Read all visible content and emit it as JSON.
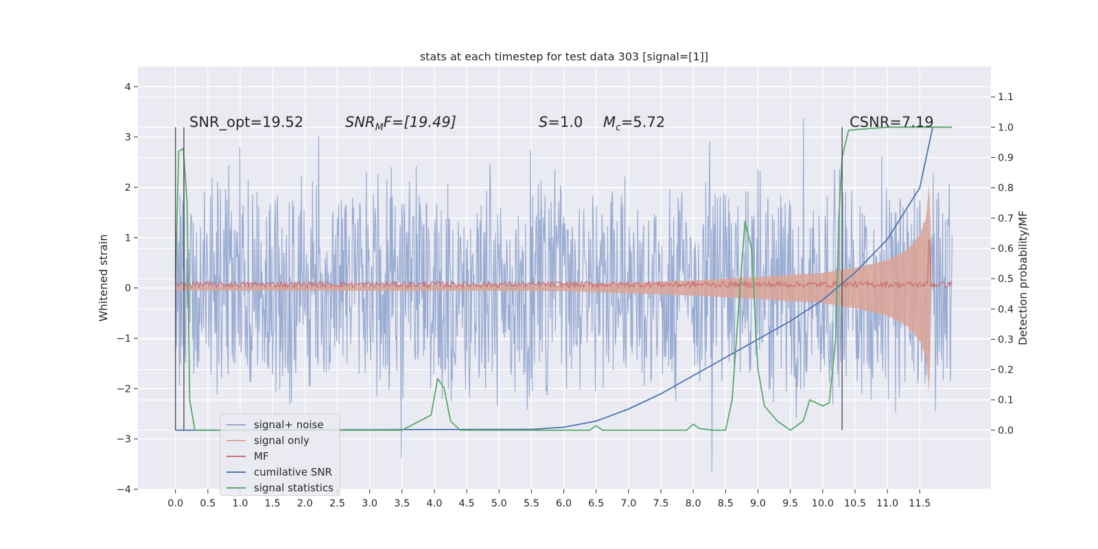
{
  "chart_data": {
    "type": "line",
    "title": "stats at each timestep for test data 303 [signal=[1]]",
    "xlabel": "",
    "ylabel": "Whitened strain",
    "y2label": "Detection probability/MF",
    "xlim": [
      -0.58,
      12.6
    ],
    "ylim": [
      -4.0,
      4.4
    ],
    "y2lim": [
      -0.195,
      1.2
    ],
    "x_ticks": [
      "0.0",
      "0.5",
      "1.0",
      "1.5",
      "2.0",
      "2.5",
      "3.0",
      "3.5",
      "4.0",
      "4.5",
      "5.0",
      "5.5",
      "6.0",
      "6.5",
      "7.0",
      "7.5",
      "8.0",
      "8.5",
      "9.0",
      "9.5",
      "10.0",
      "10.5",
      "11.0",
      "11.5"
    ],
    "y_ticks": [
      "4",
      "3",
      "2",
      "1",
      "0",
      "−1",
      "−2",
      "−3",
      "−4"
    ],
    "y2_ticks": [
      "1.1",
      "1.0",
      "0.9",
      "0.8",
      "0.7",
      "0.6",
      "0.5",
      "0.4",
      "0.3",
      "0.2",
      "0.1",
      "0.0"
    ],
    "grid": true,
    "legend_position": "lower-left",
    "annotations": {
      "snr_opt": "SNR_opt=19.52",
      "snr_mf_a": "SNR",
      "snr_mf_sub": "M",
      "snr_mf_b": "F=[19.49]",
      "s_a": "S",
      "s_b": "=1.0",
      "mc_a": "M",
      "mc_sub": "c",
      "mc_b": "=5.72",
      "csnr": "CSNR=7.19"
    },
    "series": [
      {
        "name": "signal+ noise",
        "color": "#94a8d0",
        "envelope_amplitude": 2.5,
        "x_range": [
          0.0,
          12.0
        ]
      },
      {
        "name": "signal only",
        "color": "#dba596",
        "x": [
          0.0,
          6.0,
          8.0,
          9.0,
          10.0,
          10.5,
          11.0,
          11.3,
          11.5,
          11.6,
          11.65,
          11.68
        ],
        "amplitude": [
          0.05,
          0.06,
          0.15,
          0.22,
          0.3,
          0.4,
          0.55,
          0.75,
          1.05,
          1.4,
          2.2,
          0.2
        ]
      },
      {
        "name": "MF",
        "color": "#cb6e71",
        "center": 0.07,
        "ripple": 0.06,
        "spike_x": 11.65,
        "spike_y": 0.95
      },
      {
        "name": "cumilative SNR",
        "color": "#4c72b0",
        "x": [
          0.0,
          5.5,
          6.0,
          6.5,
          7.0,
          7.5,
          8.0,
          8.5,
          9.0,
          9.5,
          10.0,
          10.5,
          11.0,
          11.5,
          11.7
        ],
        "y2": [
          0.0,
          0.003,
          0.01,
          0.03,
          0.07,
          0.12,
          0.18,
          0.24,
          0.3,
          0.36,
          0.43,
          0.52,
          0.63,
          0.8,
          1.0
        ]
      },
      {
        "name": "signal statistics",
        "color": "#55a868",
        "x": [
          0.0,
          0.05,
          0.12,
          0.18,
          0.22,
          0.3,
          3.5,
          3.95,
          4.05,
          4.15,
          4.25,
          4.4,
          6.4,
          6.5,
          6.6,
          7.0,
          7.9,
          8.0,
          8.1,
          8.3,
          8.5,
          8.6,
          8.7,
          8.8,
          8.9,
          9.0,
          9.1,
          9.3,
          9.5,
          9.7,
          9.8,
          10.0,
          10.1,
          10.2,
          10.25,
          10.3,
          10.4,
          11.0,
          11.5,
          12.0
        ],
        "y2": [
          0.5,
          0.92,
          0.93,
          0.75,
          0.1,
          0.0,
          0.0,
          0.05,
          0.17,
          0.14,
          0.03,
          0.0,
          0.0,
          0.015,
          0.0,
          0.0,
          0.0,
          0.02,
          0.005,
          0.0,
          0.0,
          0.1,
          0.4,
          0.69,
          0.6,
          0.2,
          0.08,
          0.03,
          0.0,
          0.03,
          0.1,
          0.08,
          0.09,
          0.3,
          0.7,
          0.9,
          0.99,
          1.0,
          1.0,
          1.0
        ]
      }
    ],
    "vlines": [
      0.0,
      0.13,
      10.3
    ]
  }
}
